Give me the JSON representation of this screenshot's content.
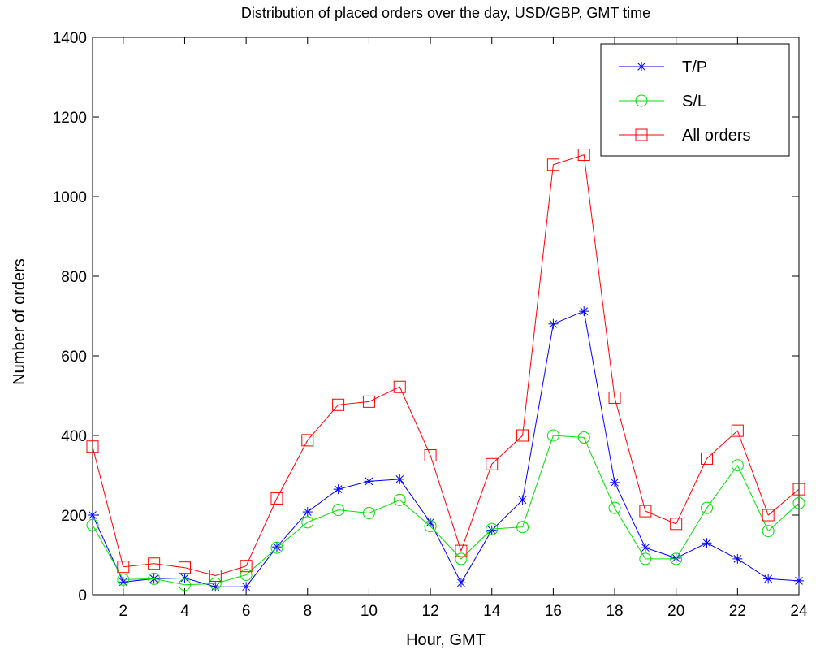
{
  "chart_data": {
    "type": "line",
    "title": "Distribution of placed orders over the day, USD/GBP, GMT time",
    "xlabel": "Hour, GMT",
    "ylabel": "Number of orders",
    "xlim": [
      1,
      24
    ],
    "ylim": [
      0,
      1400
    ],
    "xticks": [
      2,
      4,
      6,
      8,
      10,
      12,
      14,
      16,
      18,
      20,
      22,
      24
    ],
    "yticks": [
      0,
      200,
      400,
      600,
      800,
      1000,
      1200,
      1400
    ],
    "grid": false,
    "legend_position": "top-right",
    "x": [
      1,
      2,
      3,
      4,
      5,
      6,
      7,
      8,
      9,
      10,
      11,
      12,
      13,
      14,
      15,
      16,
      17,
      18,
      19,
      20,
      21,
      22,
      23,
      24
    ],
    "series": [
      {
        "name": "T/P",
        "color": "#0000ff",
        "marker": "asterisk",
        "values": [
          200,
          32,
          40,
          42,
          20,
          20,
          120,
          208,
          265,
          285,
          290,
          182,
          30,
          162,
          238,
          680,
          712,
          282,
          118,
          92,
          130,
          90,
          40,
          35
        ]
      },
      {
        "name": "S/L",
        "color": "#00e000",
        "marker": "circle",
        "values": [
          175,
          38,
          40,
          25,
          28,
          50,
          118,
          182,
          213,
          205,
          238,
          172,
          90,
          165,
          170,
          400,
          395,
          218,
          90,
          90,
          218,
          325,
          160,
          230
        ]
      },
      {
        "name": "All orders",
        "color": "#ff0000",
        "marker": "square",
        "values": [
          372,
          70,
          78,
          68,
          48,
          72,
          242,
          388,
          477,
          485,
          522,
          350,
          110,
          328,
          400,
          1080,
          1105,
          495,
          210,
          178,
          342,
          412,
          200,
          265
        ]
      }
    ]
  }
}
